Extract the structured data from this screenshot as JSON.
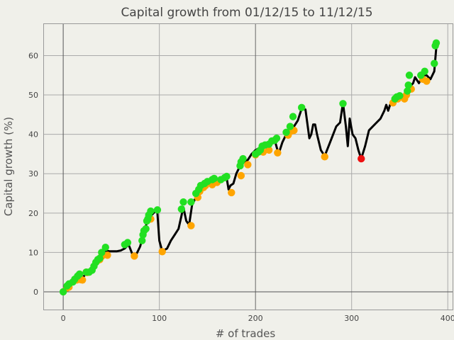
{
  "chart_data": {
    "type": "line",
    "title": "Capital growth from 01/12/15 to 11/12/15",
    "xlabel": "# of trades",
    "ylabel": "Capital growth (%)",
    "xlim": [
      -20,
      405
    ],
    "ylim": [
      -4.5,
      68
    ],
    "x_ticks": [
      "0",
      "100",
      "200",
      "300",
      "400"
    ],
    "y_ticks": [
      "0",
      "10",
      "20",
      "30",
      "40",
      "50",
      "60"
    ],
    "grid": true,
    "colors": {
      "line": "#000000",
      "green_marker": "#22e022",
      "orange_marker": "#ffa500",
      "red_marker": "#ee1111",
      "grid": "#aaaaaa",
      "background": "#f0f0ea"
    },
    "series": [
      {
        "values": [
          [
            0,
            0
          ],
          [
            4,
            1
          ],
          [
            8,
            2
          ],
          [
            12,
            3
          ],
          [
            16,
            3.5
          ],
          [
            20,
            3.3
          ],
          [
            24,
            5
          ],
          [
            28,
            5.3
          ],
          [
            32,
            7
          ],
          [
            36,
            8.5
          ],
          [
            40,
            9.5
          ],
          [
            44,
            10.5
          ],
          [
            48,
            10.3
          ],
          [
            52,
            10.3
          ],
          [
            56,
            10.3
          ],
          [
            60,
            10.5
          ],
          [
            64,
            11
          ],
          [
            68,
            12
          ],
          [
            72,
            9.5
          ],
          [
            76,
            9.5
          ],
          [
            80,
            11.5
          ],
          [
            84,
            15
          ],
          [
            88,
            18.5
          ],
          [
            92,
            19.5
          ],
          [
            96,
            20.5
          ],
          [
            98,
            20
          ],
          [
            100,
            13
          ],
          [
            103,
            10.3
          ],
          [
            108,
            11
          ],
          [
            112,
            13
          ],
          [
            116,
            14.5
          ],
          [
            120,
            16
          ],
          [
            125,
            21.5
          ],
          [
            128,
            18
          ],
          [
            131,
            17
          ],
          [
            134,
            22
          ],
          [
            138,
            24
          ],
          [
            142,
            26
          ],
          [
            146,
            27
          ],
          [
            150,
            27.5
          ],
          [
            154,
            28
          ],
          [
            158,
            27.8
          ],
          [
            162,
            28.2
          ],
          [
            166,
            28.5
          ],
          [
            170,
            29
          ],
          [
            172,
            26
          ],
          [
            174,
            27
          ],
          [
            177,
            27.5
          ],
          [
            180,
            30
          ],
          [
            184,
            32
          ],
          [
            188,
            33
          ],
          [
            192,
            33.5
          ],
          [
            196,
            35
          ],
          [
            200,
            36
          ],
          [
            204,
            36.5
          ],
          [
            208,
            37
          ],
          [
            212,
            37.5
          ],
          [
            216,
            38
          ],
          [
            220,
            38.5
          ],
          [
            224,
            35
          ],
          [
            228,
            38
          ],
          [
            232,
            40
          ],
          [
            236,
            41
          ],
          [
            240,
            42
          ],
          [
            244,
            43.5
          ],
          [
            248,
            46.5
          ],
          [
            252,
            46.3
          ],
          [
            256,
            39
          ],
          [
            258,
            40
          ],
          [
            260,
            42.5
          ],
          [
            262,
            42.5
          ],
          [
            264,
            40
          ],
          [
            268,
            36
          ],
          [
            272,
            34.5
          ],
          [
            276,
            37
          ],
          [
            280,
            39.5
          ],
          [
            284,
            42
          ],
          [
            288,
            43
          ],
          [
            291,
            48
          ],
          [
            294,
            42
          ],
          [
            296,
            37
          ],
          [
            298,
            44
          ],
          [
            301,
            40
          ],
          [
            304,
            39
          ],
          [
            307,
            36
          ],
          [
            310,
            33.8
          ],
          [
            314,
            37
          ],
          [
            318,
            41
          ],
          [
            322,
            42
          ],
          [
            326,
            43
          ],
          [
            330,
            44
          ],
          [
            334,
            46
          ],
          [
            336,
            47.5
          ],
          [
            338,
            46
          ],
          [
            340,
            47.5
          ],
          [
            344,
            49
          ],
          [
            348,
            50
          ],
          [
            350,
            49.5
          ],
          [
            354,
            49
          ],
          [
            358,
            51
          ],
          [
            362,
            52.5
          ],
          [
            364,
            53
          ],
          [
            366,
            54.5
          ],
          [
            370,
            53
          ],
          [
            374,
            55
          ],
          [
            378,
            55
          ],
          [
            382,
            54
          ],
          [
            386,
            56
          ],
          [
            388,
            62
          ],
          [
            389,
            63
          ]
        ]
      }
    ],
    "markers_green": [
      [
        0,
        0
      ],
      [
        4,
        1.5
      ],
      [
        6,
        2
      ],
      [
        10,
        2.5
      ],
      [
        12,
        3.2
      ],
      [
        15,
        4
      ],
      [
        17,
        4.5
      ],
      [
        24,
        5
      ],
      [
        27,
        5
      ],
      [
        30,
        5.5
      ],
      [
        32,
        6.5
      ],
      [
        34,
        7.5
      ],
      [
        36,
        8.2
      ],
      [
        38,
        8.5
      ],
      [
        40,
        10
      ],
      [
        44,
        11.3
      ],
      [
        64,
        12
      ],
      [
        67,
        12.5
      ],
      [
        82,
        13
      ],
      [
        83,
        14.5
      ],
      [
        84,
        15.5
      ],
      [
        86,
        16
      ],
      [
        87,
        18
      ],
      [
        88,
        18.5
      ],
      [
        89,
        19.5
      ],
      [
        91,
        20.5
      ],
      [
        98,
        20.8
      ],
      [
        123,
        21
      ],
      [
        125,
        22.8
      ],
      [
        133,
        22.8
      ],
      [
        138,
        25
      ],
      [
        141,
        26
      ],
      [
        143,
        27
      ],
      [
        147,
        27.5
      ],
      [
        150,
        28
      ],
      [
        155,
        28.5
      ],
      [
        157,
        28.8
      ],
      [
        164,
        28.5
      ],
      [
        168,
        29
      ],
      [
        170,
        29.3
      ],
      [
        184,
        32
      ],
      [
        185,
        33
      ],
      [
        187,
        33.8
      ],
      [
        200,
        35
      ],
      [
        203,
        35.5
      ],
      [
        205,
        36
      ],
      [
        207,
        37
      ],
      [
        210,
        37.3
      ],
      [
        214,
        37.5
      ],
      [
        217,
        38.3
      ],
      [
        220,
        38.5
      ],
      [
        222,
        39
      ],
      [
        232,
        40.5
      ],
      [
        236,
        42
      ],
      [
        239,
        44.5
      ],
      [
        248,
        46.8
      ],
      [
        291,
        47.8
      ],
      [
        345,
        49
      ],
      [
        347,
        49.5
      ],
      [
        350,
        49.8
      ],
      [
        358,
        51
      ],
      [
        359,
        52.5
      ],
      [
        360,
        55
      ],
      [
        372,
        55
      ],
      [
        376,
        56
      ],
      [
        386,
        58
      ],
      [
        387,
        62.5
      ],
      [
        388,
        63.2
      ]
    ],
    "markers_orange": [
      [
        4,
        1
      ],
      [
        6,
        1.2
      ],
      [
        14,
        3
      ],
      [
        18,
        3.1
      ],
      [
        20,
        3
      ],
      [
        24,
        5
      ],
      [
        25,
        4.9
      ],
      [
        36,
        8
      ],
      [
        38,
        8.2
      ],
      [
        40,
        9
      ],
      [
        46,
        9.3
      ],
      [
        74,
        9.1
      ],
      [
        91,
        18.5
      ],
      [
        103,
        10.2
      ],
      [
        133,
        16.8
      ],
      [
        140,
        24
      ],
      [
        142,
        25.5
      ],
      [
        146,
        26.5
      ],
      [
        148,
        27
      ],
      [
        155,
        27.2
      ],
      [
        160,
        27.8
      ],
      [
        175,
        25.2
      ],
      [
        185,
        29.5
      ],
      [
        192,
        32.3
      ],
      [
        200,
        34.8
      ],
      [
        208,
        35.5
      ],
      [
        214,
        36
      ],
      [
        223,
        35.3
      ],
      [
        234,
        39.8
      ],
      [
        237,
        40.8
      ],
      [
        240,
        41
      ],
      [
        272,
        34.3
      ],
      [
        343,
        48
      ],
      [
        348,
        49
      ],
      [
        355,
        49
      ],
      [
        357,
        50
      ],
      [
        362,
        51.5
      ],
      [
        374,
        54
      ],
      [
        378,
        53.5
      ]
    ],
    "markers_red": [
      [
        310,
        33.8
      ]
    ]
  }
}
